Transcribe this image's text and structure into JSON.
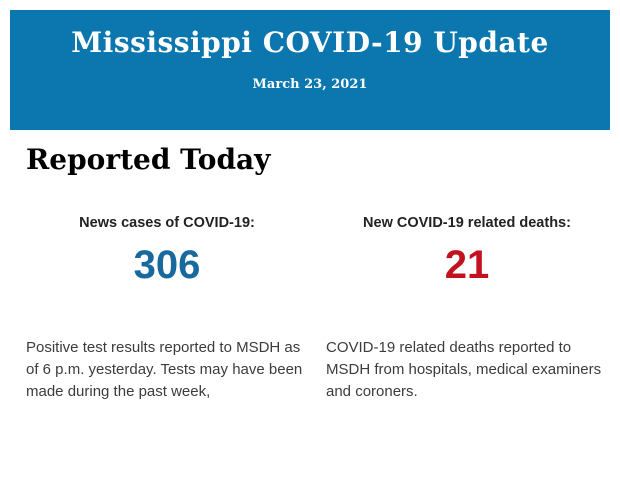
{
  "banner": {
    "title": "Mississippi COVID-19 Update",
    "date": "March 23, 2021",
    "background_color": "#0b77ae",
    "text_color": "#ffffff"
  },
  "section": {
    "heading": "Reported Today"
  },
  "stats": {
    "cases": {
      "label": "News cases of COVID-19:",
      "value": "306",
      "value_color": "#17699e",
      "description": "Positive test results reported to MSDH as of 6 p.m. yesterday. Tests may have been made during the past week,"
    },
    "deaths": {
      "label": "New COVID-19 related deaths:",
      "value": "21",
      "value_color": "#c2121e",
      "description": "COVID-19 related deaths reported to MSDH from hospitals, medical examiners and coroners."
    }
  }
}
